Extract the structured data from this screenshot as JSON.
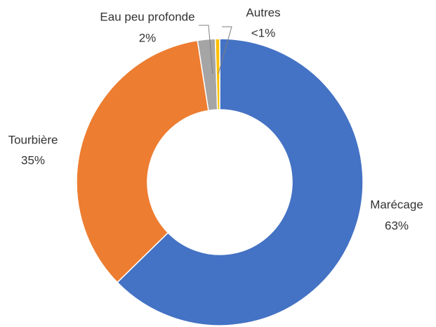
{
  "chart_data": {
    "type": "donut",
    "categories": [
      "Marécage",
      "Tourbière",
      "Eau peu profonde",
      "Autres"
    ],
    "values": [
      63,
      35,
      2,
      0.5
    ],
    "value_labels": [
      "63%",
      "35%",
      "2%",
      "<1%"
    ],
    "colors": [
      "#4472c4",
      "#ed7d31",
      "#a5a5a5",
      "#ffc000"
    ]
  }
}
